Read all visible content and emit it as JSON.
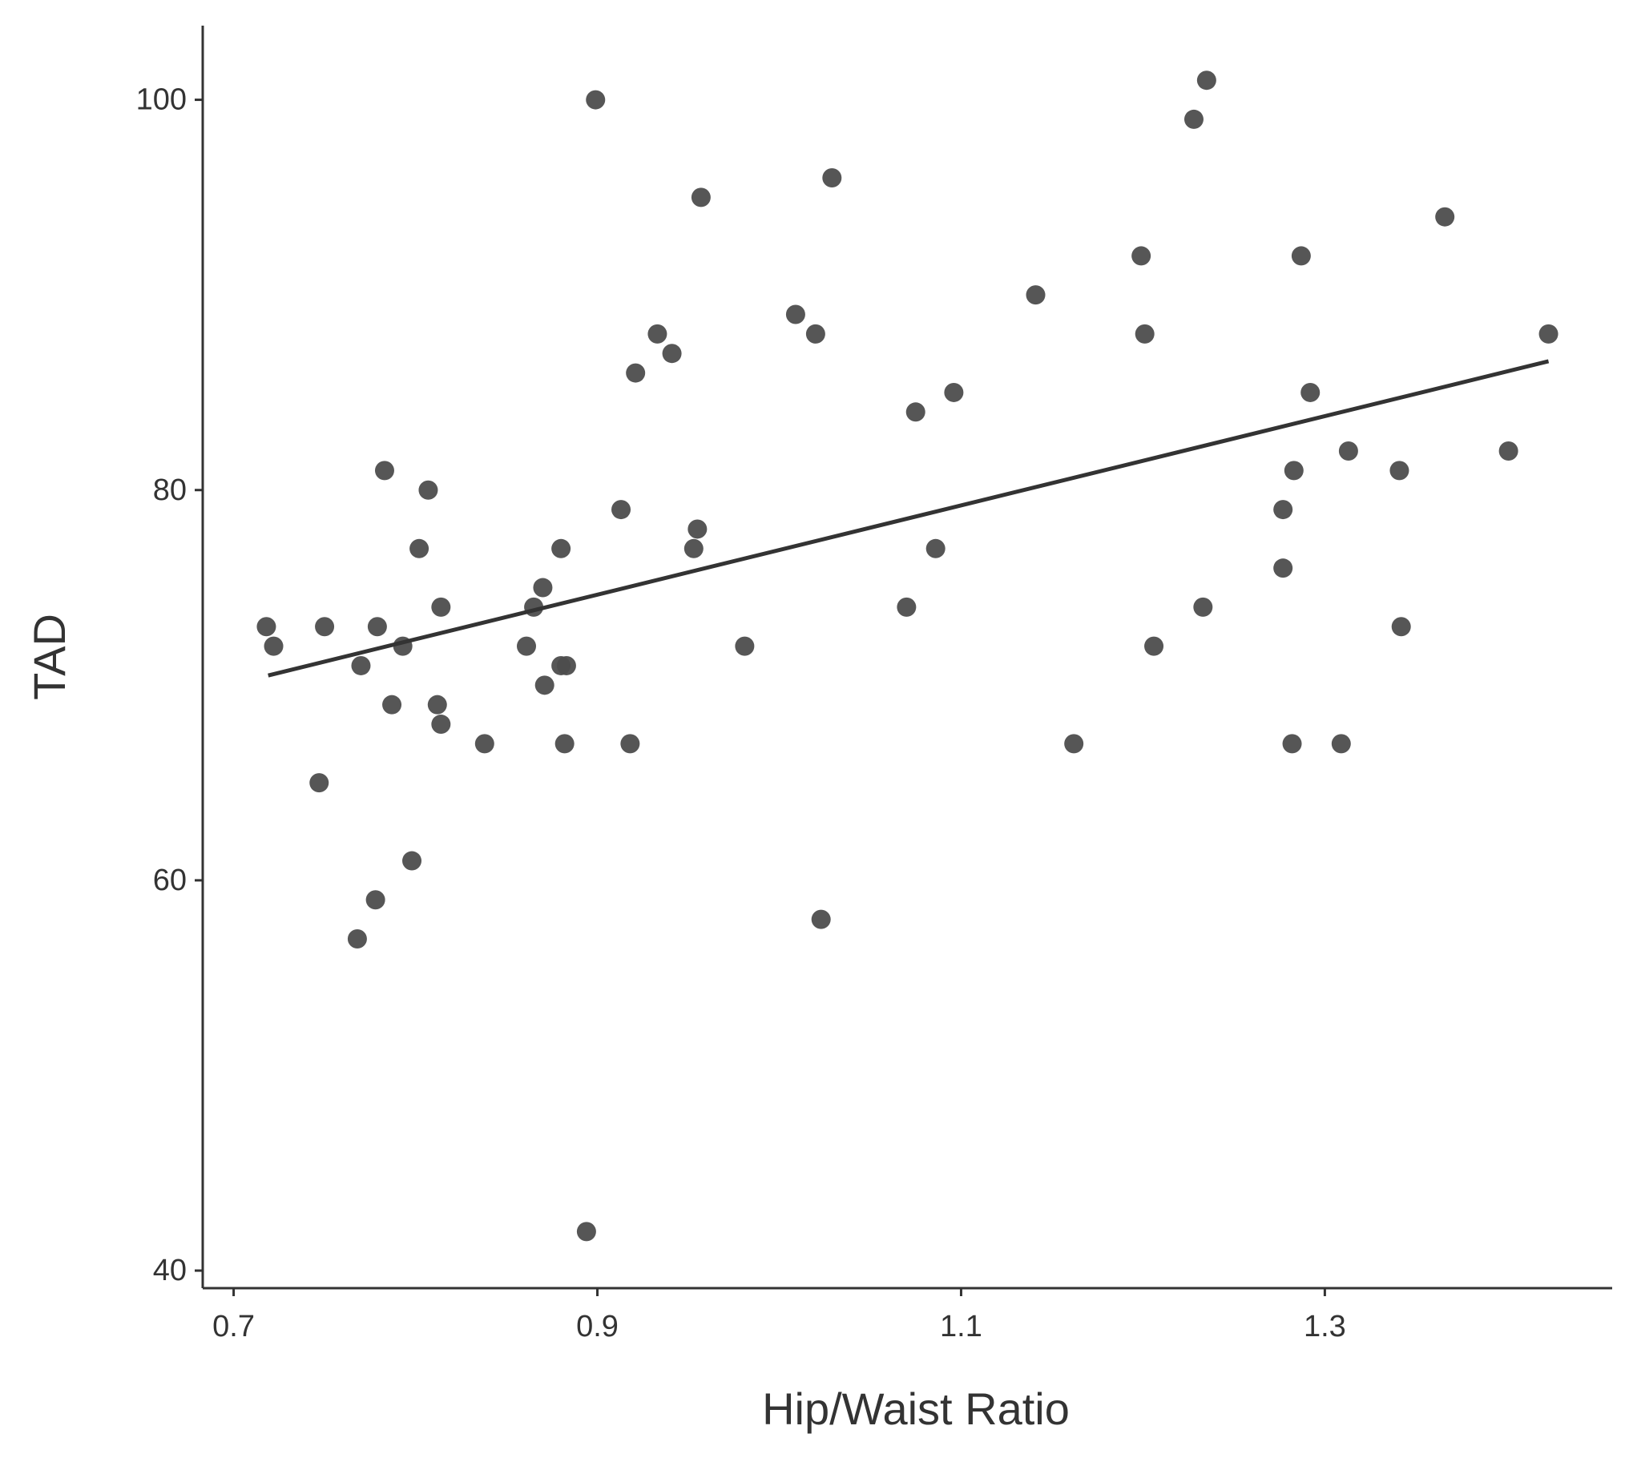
{
  "chart_data": {
    "type": "scatter",
    "x_label": "Hip/Waist Ratio",
    "y_label": "TAD",
    "xlim": [
      0.683,
      1.458
    ],
    "ylim": [
      39.1,
      103.8
    ],
    "xticks": [
      {
        "value": 0.7,
        "label": "0.7"
      },
      {
        "value": 0.9,
        "label": "0.9"
      },
      {
        "value": 1.1,
        "label": "1.1"
      },
      {
        "value": 1.3,
        "label": "1.3"
      }
    ],
    "yticks": [
      40,
      60,
      80,
      100
    ],
    "grid": false,
    "color": "#4d4d4d",
    "x": [
      0.718,
      0.722,
      0.75,
      0.747,
      0.77,
      0.768,
      0.778,
      0.779,
      0.783,
      0.787,
      0.793,
      0.798,
      0.802,
      0.807,
      0.812,
      0.814,
      0.814,
      0.838,
      0.861,
      0.865,
      0.87,
      0.871,
      0.88,
      0.88,
      0.883,
      0.882,
      0.894,
      0.899,
      0.913,
      0.918,
      0.921,
      0.933,
      0.941,
      0.953,
      0.955,
      0.957,
      0.981,
      1.009,
      1.02,
      1.023,
      1.029,
      1.07,
      1.075,
      1.086,
      1.096,
      1.141,
      1.162,
      1.199,
      1.201,
      1.206,
      1.228,
      1.233,
      1.235,
      1.277,
      1.277,
      1.282,
      1.283,
      1.287,
      1.292,
      1.309,
      1.313,
      1.341,
      1.342,
      1.366,
      1.401,
      1.423
    ],
    "y": [
      73,
      72,
      73,
      65,
      71,
      57,
      59,
      73,
      81,
      69,
      72,
      61,
      77,
      80,
      69,
      74,
      68,
      67,
      72,
      74,
      75,
      70,
      77,
      71,
      71,
      67,
      42,
      100,
      79,
      67,
      86,
      88,
      87,
      77,
      78,
      95,
      72,
      89,
      88,
      58,
      96,
      74,
      84,
      77,
      85,
      90,
      67,
      92,
      88,
      72,
      99,
      74,
      101,
      79,
      76,
      67,
      81,
      92,
      85,
      67,
      82,
      81,
      73,
      94,
      82,
      88
    ],
    "fit": {
      "color": "#333333",
      "x": [
        0.719,
        1.423
      ],
      "y": [
        70.5,
        86.6
      ]
    }
  }
}
